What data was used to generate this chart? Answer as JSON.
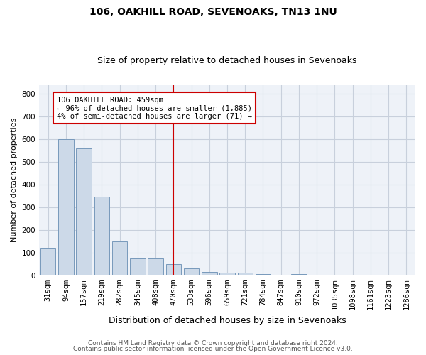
{
  "title1": "106, OAKHILL ROAD, SEVENOAKS, TN13 1NU",
  "title2": "Size of property relative to detached houses in Sevenoaks",
  "xlabel": "Distribution of detached houses by size in Sevenoaks",
  "ylabel": "Number of detached properties",
  "bar_labels": [
    "31sqm",
    "94sqm",
    "157sqm",
    "219sqm",
    "282sqm",
    "345sqm",
    "408sqm",
    "470sqm",
    "533sqm",
    "596sqm",
    "659sqm",
    "721sqm",
    "784sqm",
    "847sqm",
    "910sqm",
    "972sqm",
    "1035sqm",
    "1098sqm",
    "1161sqm",
    "1223sqm",
    "1286sqm"
  ],
  "bar_values": [
    120,
    600,
    560,
    345,
    150,
    75,
    75,
    50,
    30,
    15,
    12,
    12,
    5,
    0,
    5,
    0,
    0,
    0,
    0,
    0,
    0
  ],
  "bar_color": "#ccd9e8",
  "bar_edge_color": "#7799bb",
  "vline_color": "#cc0000",
  "annotation_text": "106 OAKHILL ROAD: 459sqm\n← 96% of detached houses are smaller (1,885)\n4% of semi-detached houses are larger (71) →",
  "annotation_box_facecolor": "#ffffff",
  "annotation_box_edgecolor": "#cc0000",
  "ylim": [
    0,
    840
  ],
  "yticks": [
    0,
    100,
    200,
    300,
    400,
    500,
    600,
    700,
    800
  ],
  "footer1": "Contains HM Land Registry data © Crown copyright and database right 2024.",
  "footer2": "Contains public sector information licensed under the Open Government Licence v3.0.",
  "bg_color": "#eef2f8",
  "grid_color": "#c8d0dc",
  "title1_fontsize": 10,
  "title2_fontsize": 9,
  "xlabel_fontsize": 9,
  "ylabel_fontsize": 8,
  "tick_fontsize": 7.5,
  "annot_fontsize": 7.5,
  "footer_fontsize": 6.5
}
